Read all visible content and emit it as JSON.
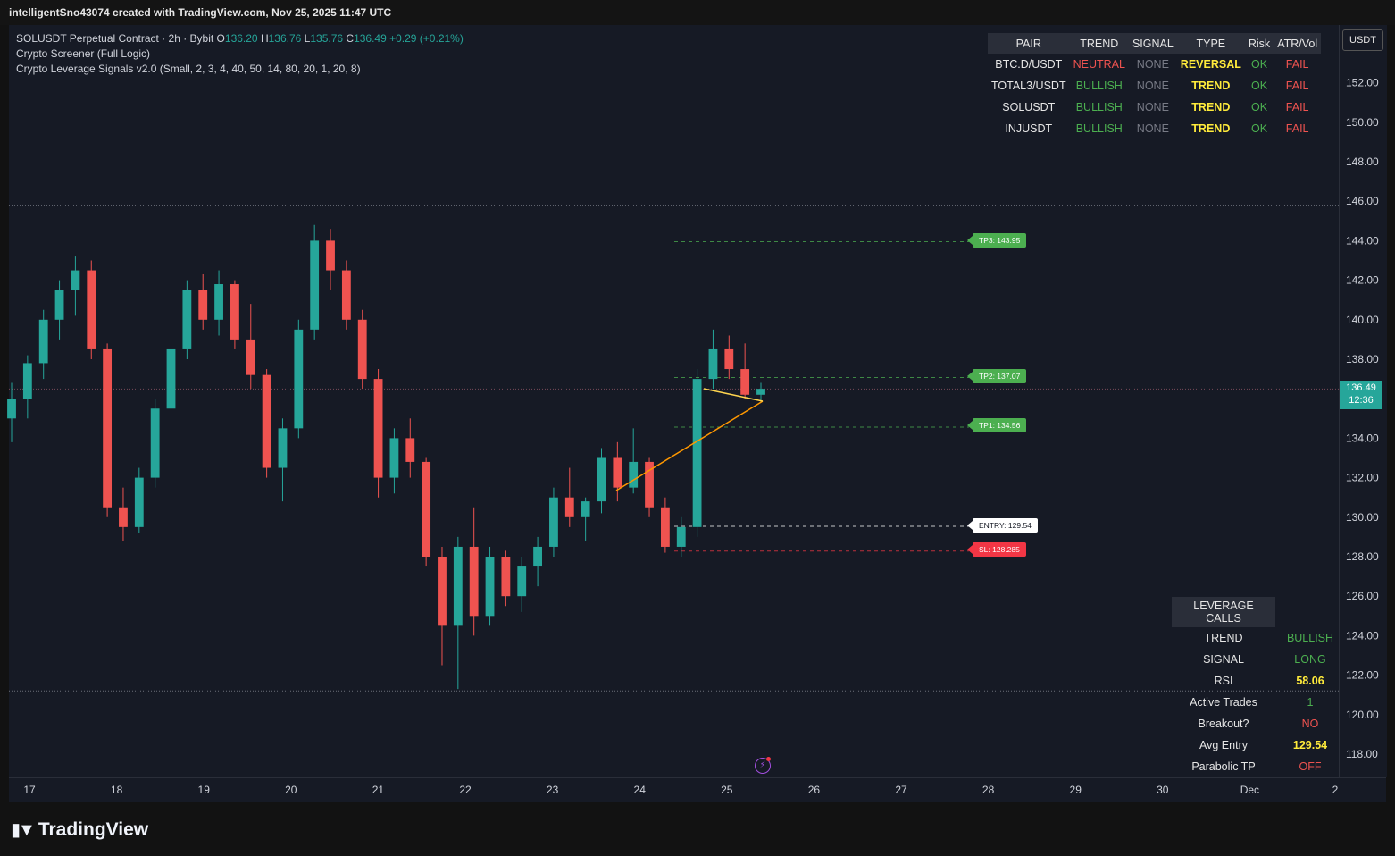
{
  "header": {
    "title": "intelligentSno43074 created with TradingView.com, Nov 25, 2025 11:47 UTC"
  },
  "legend": {
    "symbol": "SOLUSDT Perpetual Contract · 2h · Bybit",
    "o_label": "O",
    "o_value": "136.20",
    "h_label": "H",
    "h_value": "136.76",
    "l_label": "L",
    "l_value": "135.76",
    "c_label": "C",
    "c_value": "136.49",
    "change": "+0.29 (+0.21%)",
    "indicator1": "Crypto Screener (Full Logic)",
    "indicator2": "Crypto Leverage Signals v2.0 (Small, 2, 3, 4, 40, 50, 14, 80, 20, 1, 20, 8)"
  },
  "currency_button": "USDT",
  "current_price": {
    "price": "136.49",
    "countdown": "12:36"
  },
  "screener": {
    "headers": [
      "PAIR",
      "TREND",
      "SIGNAL",
      "TYPE",
      "Risk",
      "ATR/Vol"
    ],
    "rows": [
      {
        "pair": "BTC.D/USDT",
        "trend": "NEUTRAL",
        "signal": "NONE",
        "type": "REVERSAL",
        "risk": "OK",
        "atr": "FAIL"
      },
      {
        "pair": "TOTAL3/USDT",
        "trend": "BULLISH",
        "signal": "NONE",
        "type": "TREND",
        "risk": "OK",
        "atr": "FAIL"
      },
      {
        "pair": "SOLUSDT",
        "trend": "BULLISH",
        "signal": "NONE",
        "type": "TREND",
        "risk": "OK",
        "atr": "FAIL"
      },
      {
        "pair": "INJUSDT",
        "trend": "BULLISH",
        "signal": "NONE",
        "type": "TREND",
        "risk": "OK",
        "atr": "FAIL"
      }
    ]
  },
  "leverage_calls": {
    "title": "LEVERAGE CALLS",
    "rows": [
      {
        "label": "TREND",
        "value": "BULLISH"
      },
      {
        "label": "SIGNAL",
        "value": "LONG"
      },
      {
        "label": "RSI",
        "value": "58.06"
      },
      {
        "label": "Active Trades",
        "value": "1"
      },
      {
        "label": "Breakout?",
        "value": "NO"
      },
      {
        "label": "Avg Entry",
        "value": "129.54"
      },
      {
        "label": "Parabolic TP",
        "value": "OFF"
      }
    ]
  },
  "levels": [
    {
      "label": "TP3: 143.95",
      "price": 143.95,
      "color": "#4caf50"
    },
    {
      "label": "TP2: 137.07",
      "price": 137.07,
      "color": "#4caf50"
    },
    {
      "label": "TP1: 134.56",
      "price": 134.56,
      "color": "#4caf50"
    },
    {
      "label": "ENTRY: 129.54",
      "price": 129.54,
      "color": "#ffffff"
    },
    {
      "label": "SL: 128.285",
      "price": 128.285,
      "color": "#f23645"
    }
  ],
  "colors": {
    "up": "#26a69a",
    "down": "#ef5350",
    "bull": "#4caf50",
    "bear": "#ef5350",
    "neutral_gray": "#787b86",
    "accent_yellow": "#ffeb3b",
    "trend_line": "#ff9800"
  },
  "footer": {
    "brand": "TradingView"
  },
  "chart_data": {
    "type": "candlestick",
    "symbol": "SOLUSDT",
    "interval": "2h",
    "y_ticks": [
      118,
      120,
      122,
      124,
      126,
      128,
      130,
      132,
      134,
      136,
      138,
      140,
      142,
      144,
      146,
      148,
      150,
      152
    ],
    "x_ticks": [
      "17",
      "18",
      "19",
      "20",
      "21",
      "22",
      "23",
      "24",
      "25",
      "26",
      "27",
      "28",
      "29",
      "30",
      "Dec",
      "2"
    ],
    "horizontal_lines": [
      145.8,
      121.2,
      136.49
    ],
    "ohlc_sample": [
      [
        135.0,
        136.8,
        133.8,
        136.0
      ],
      [
        136.0,
        138.2,
        135.0,
        137.8
      ],
      [
        137.8,
        140.5,
        137.0,
        140.0
      ],
      [
        140.0,
        142.0,
        139.0,
        141.5
      ],
      [
        141.5,
        143.2,
        140.2,
        142.5
      ],
      [
        142.5,
        143.0,
        138.0,
        138.5
      ],
      [
        138.5,
        138.8,
        130.0,
        130.5
      ],
      [
        130.5,
        131.5,
        128.8,
        129.5
      ],
      [
        129.5,
        132.5,
        129.2,
        132.0
      ],
      [
        132.0,
        136.0,
        131.5,
        135.5
      ],
      [
        135.5,
        138.8,
        135.0,
        138.5
      ],
      [
        138.5,
        142.0,
        138.0,
        141.5
      ],
      [
        141.5,
        142.3,
        139.5,
        140.0
      ],
      [
        140.0,
        142.5,
        139.2,
        141.8
      ],
      [
        141.8,
        142.0,
        138.5,
        139.0
      ],
      [
        139.0,
        140.8,
        136.5,
        137.2
      ],
      [
        137.2,
        137.5,
        132.0,
        132.5
      ],
      [
        132.5,
        135.0,
        130.8,
        134.5
      ],
      [
        134.5,
        140.0,
        134.0,
        139.5
      ],
      [
        139.5,
        144.8,
        139.0,
        144.0
      ],
      [
        144.0,
        144.6,
        141.5,
        142.5
      ],
      [
        142.5,
        143.0,
        139.5,
        140.0
      ],
      [
        140.0,
        140.5,
        136.5,
        137.0
      ],
      [
        137.0,
        137.5,
        131.0,
        132.0
      ],
      [
        132.0,
        134.5,
        131.2,
        134.0
      ],
      [
        134.0,
        135.0,
        132.0,
        132.8
      ],
      [
        132.8,
        133.0,
        127.5,
        128.0
      ],
      [
        128.0,
        128.5,
        122.5,
        124.5
      ],
      [
        124.5,
        129.0,
        121.3,
        128.5
      ],
      [
        128.5,
        130.5,
        124.0,
        125.0
      ],
      [
        125.0,
        128.5,
        124.5,
        128.0
      ],
      [
        128.0,
        128.3,
        125.5,
        126.0
      ],
      [
        126.0,
        128.0,
        125.2,
        127.5
      ],
      [
        127.5,
        129.0,
        126.5,
        128.5
      ],
      [
        128.5,
        131.5,
        128.0,
        131.0
      ],
      [
        131.0,
        132.5,
        129.5,
        130.0
      ],
      [
        130.0,
        131.0,
        128.8,
        130.8
      ],
      [
        130.8,
        133.5,
        130.2,
        133.0
      ],
      [
        133.0,
        133.8,
        130.8,
        131.5
      ],
      [
        131.5,
        134.5,
        131.2,
        132.8
      ],
      [
        132.8,
        133.0,
        130.0,
        130.5
      ],
      [
        130.5,
        131.0,
        128.2,
        128.5
      ],
      [
        128.5,
        130.0,
        128.0,
        129.5
      ],
      [
        129.5,
        137.5,
        129.0,
        137.0
      ],
      [
        137.0,
        139.5,
        136.5,
        138.5
      ],
      [
        138.5,
        139.2,
        137.0,
        137.5
      ],
      [
        137.5,
        138.8,
        136.0,
        136.2
      ],
      [
        136.2,
        136.8,
        135.8,
        136.5
      ]
    ]
  }
}
